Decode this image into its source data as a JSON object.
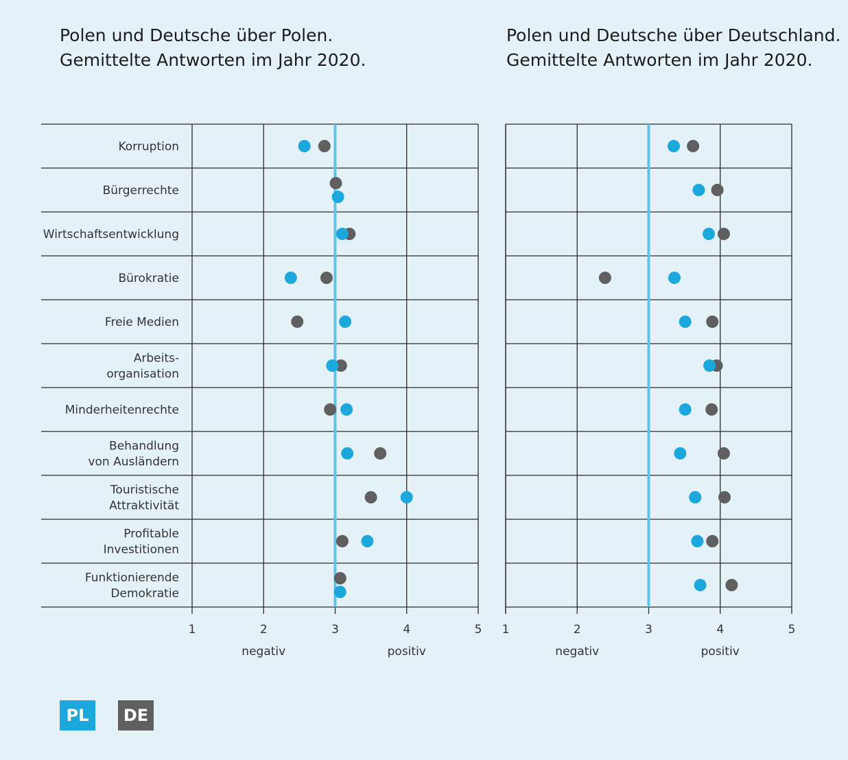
{
  "colors": {
    "background": "#e4f2f8",
    "pl": "#1ca8dd",
    "de": "#5f5f5f",
    "reference_line": "#5fc1e6",
    "grid": "#2a2a2a"
  },
  "legend": {
    "pl_label": "PL",
    "de_label": "DE"
  },
  "chart_data": [
    {
      "type": "scatter",
      "title_lines": [
        "Polen und Deutsche über Polen.",
        "Gemittelte Antworten im Jahr 2020."
      ],
      "xlim": [
        1,
        5
      ],
      "xticks": [
        1,
        2,
        3,
        4,
        5
      ],
      "xlabel_negative": "negativ",
      "xlabel_positive": "positiv",
      "reference_value": 3,
      "categories": [
        [
          "Korruption"
        ],
        [
          "Bürgerrechte"
        ],
        [
          "Wirtschaftsentwicklung"
        ],
        [
          "Bürokratie"
        ],
        [
          "Freie Medien"
        ],
        [
          "Arbeits-",
          "organisation"
        ],
        [
          "Minderheitenrechte"
        ],
        [
          "Behandlung",
          "von Ausländern"
        ],
        [
          "Touristische",
          "Attraktivität"
        ],
        [
          "Profitable",
          "Investitionen"
        ],
        [
          "Funktionierende",
          "Demokratie"
        ]
      ],
      "series": [
        {
          "name": "PL",
          "values": [
            2.57,
            3.04,
            3.1,
            2.38,
            3.14,
            2.96,
            3.16,
            3.17,
            4.0,
            3.45,
            3.07
          ]
        },
        {
          "name": "DE",
          "values": [
            2.85,
            3.01,
            3.2,
            2.88,
            2.47,
            3.08,
            2.93,
            3.63,
            3.5,
            3.1,
            3.07
          ]
        }
      ]
    },
    {
      "type": "scatter",
      "title_lines": [
        "Polen und Deutsche über Deutschland.",
        "Gemittelte Antworten im Jahr 2020."
      ],
      "xlim": [
        1,
        5
      ],
      "xticks": [
        1,
        2,
        3,
        4,
        5
      ],
      "xlabel_negative": "negativ",
      "xlabel_positive": "positiv",
      "reference_value": 3,
      "series": [
        {
          "name": "PL",
          "values": [
            3.35,
            3.7,
            3.84,
            3.36,
            3.51,
            3.85,
            3.51,
            3.44,
            3.65,
            3.68,
            3.72
          ]
        },
        {
          "name": "DE",
          "values": [
            3.62,
            3.96,
            4.05,
            2.39,
            3.89,
            3.95,
            3.88,
            4.05,
            4.06,
            3.89,
            4.16
          ]
        }
      ]
    }
  ]
}
